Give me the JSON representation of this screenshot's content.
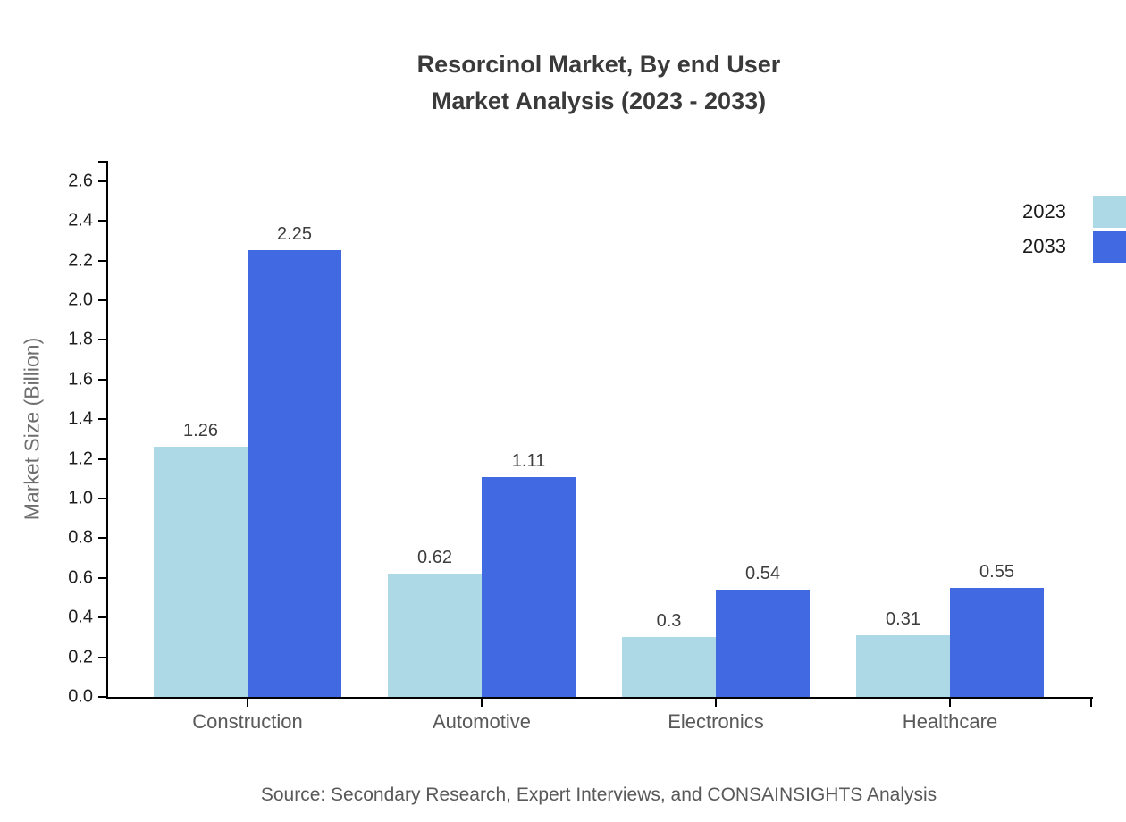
{
  "title": {
    "line1": "Resorcinol Market, By end User",
    "line2": "Market Analysis (2023 - 2033)"
  },
  "source_text": "Source: Secondary Research, Expert Interviews, and CONSAINSIGHTS Analysis",
  "chart_data": {
    "type": "bar",
    "title": "Resorcinol Market, By end User Market Analysis (2023 - 2033)",
    "categories": [
      "Construction",
      "Automotive",
      "Electronics",
      "Healthcare"
    ],
    "series": [
      {
        "name": "2023",
        "color": "#ADD8E6",
        "values": [
          1.26,
          0.62,
          0.3,
          0.31
        ]
      },
      {
        "name": "2033",
        "color": "#4169E1",
        "values": [
          2.25,
          1.11,
          0.54,
          0.55
        ]
      }
    ],
    "xlabel": "",
    "ylabel": "Market Size (Billion)",
    "ylim": [
      0,
      2.6
    ],
    "ytick_step": 0.2,
    "grid": false,
    "legend_position": "top-right",
    "bar_value_labels": true
  }
}
